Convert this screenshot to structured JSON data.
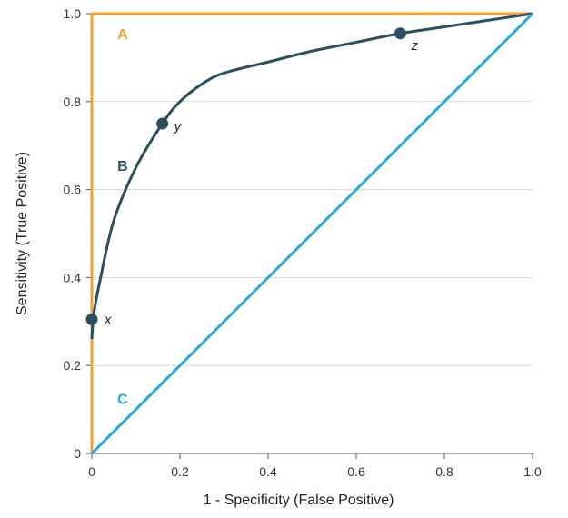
{
  "chart_data": {
    "type": "line",
    "title": "",
    "xlabel": "1 - Specificity (False Positive)",
    "ylabel": "Sensitivity (True Positive)",
    "xlim": [
      0,
      1
    ],
    "ylim": [
      0,
      1
    ],
    "x_ticks": [
      "0",
      "0.2",
      "0.4",
      "0.6",
      "0.8",
      "1.0"
    ],
    "y_ticks": [
      "0",
      "0.2",
      "0.4",
      "0.6",
      "0.8",
      "1.0"
    ],
    "grid": true,
    "series": [
      {
        "name": "A",
        "color": "#f0a034",
        "points": [
          [
            0,
            0
          ],
          [
            0,
            1
          ],
          [
            1,
            1
          ]
        ]
      },
      {
        "name": "B",
        "color": "#2d4f5c",
        "points": [
          [
            0,
            0.26
          ],
          [
            0.005,
            0.32
          ],
          [
            0.02,
            0.4
          ],
          [
            0.05,
            0.53
          ],
          [
            0.1,
            0.65
          ],
          [
            0.16,
            0.75
          ],
          [
            0.2,
            0.8
          ],
          [
            0.25,
            0.84
          ],
          [
            0.3,
            0.865
          ],
          [
            0.4,
            0.89
          ],
          [
            0.5,
            0.915
          ],
          [
            0.6,
            0.935
          ],
          [
            0.7,
            0.955
          ],
          [
            0.8,
            0.97
          ],
          [
            0.9,
            0.985
          ],
          [
            1,
            1
          ]
        ]
      },
      {
        "name": "C",
        "color": "#29a8d8",
        "points": [
          [
            0,
            0
          ],
          [
            1,
            1
          ]
        ]
      }
    ],
    "labels": [
      {
        "text": "A",
        "x": 0.07,
        "y": 0.955,
        "color": "#f0a034"
      },
      {
        "text": "B",
        "x": 0.07,
        "y": 0.655,
        "color": "#2d4f5c"
      },
      {
        "text": "C",
        "x": 0.07,
        "y": 0.125,
        "color": "#29a8d8"
      }
    ],
    "points": [
      {
        "label": "x",
        "x": 0,
        "y": 0.305
      },
      {
        "label": "y",
        "x": 0.16,
        "y": 0.75
      },
      {
        "label": "z",
        "x": 0.7,
        "y": 0.955
      }
    ]
  }
}
